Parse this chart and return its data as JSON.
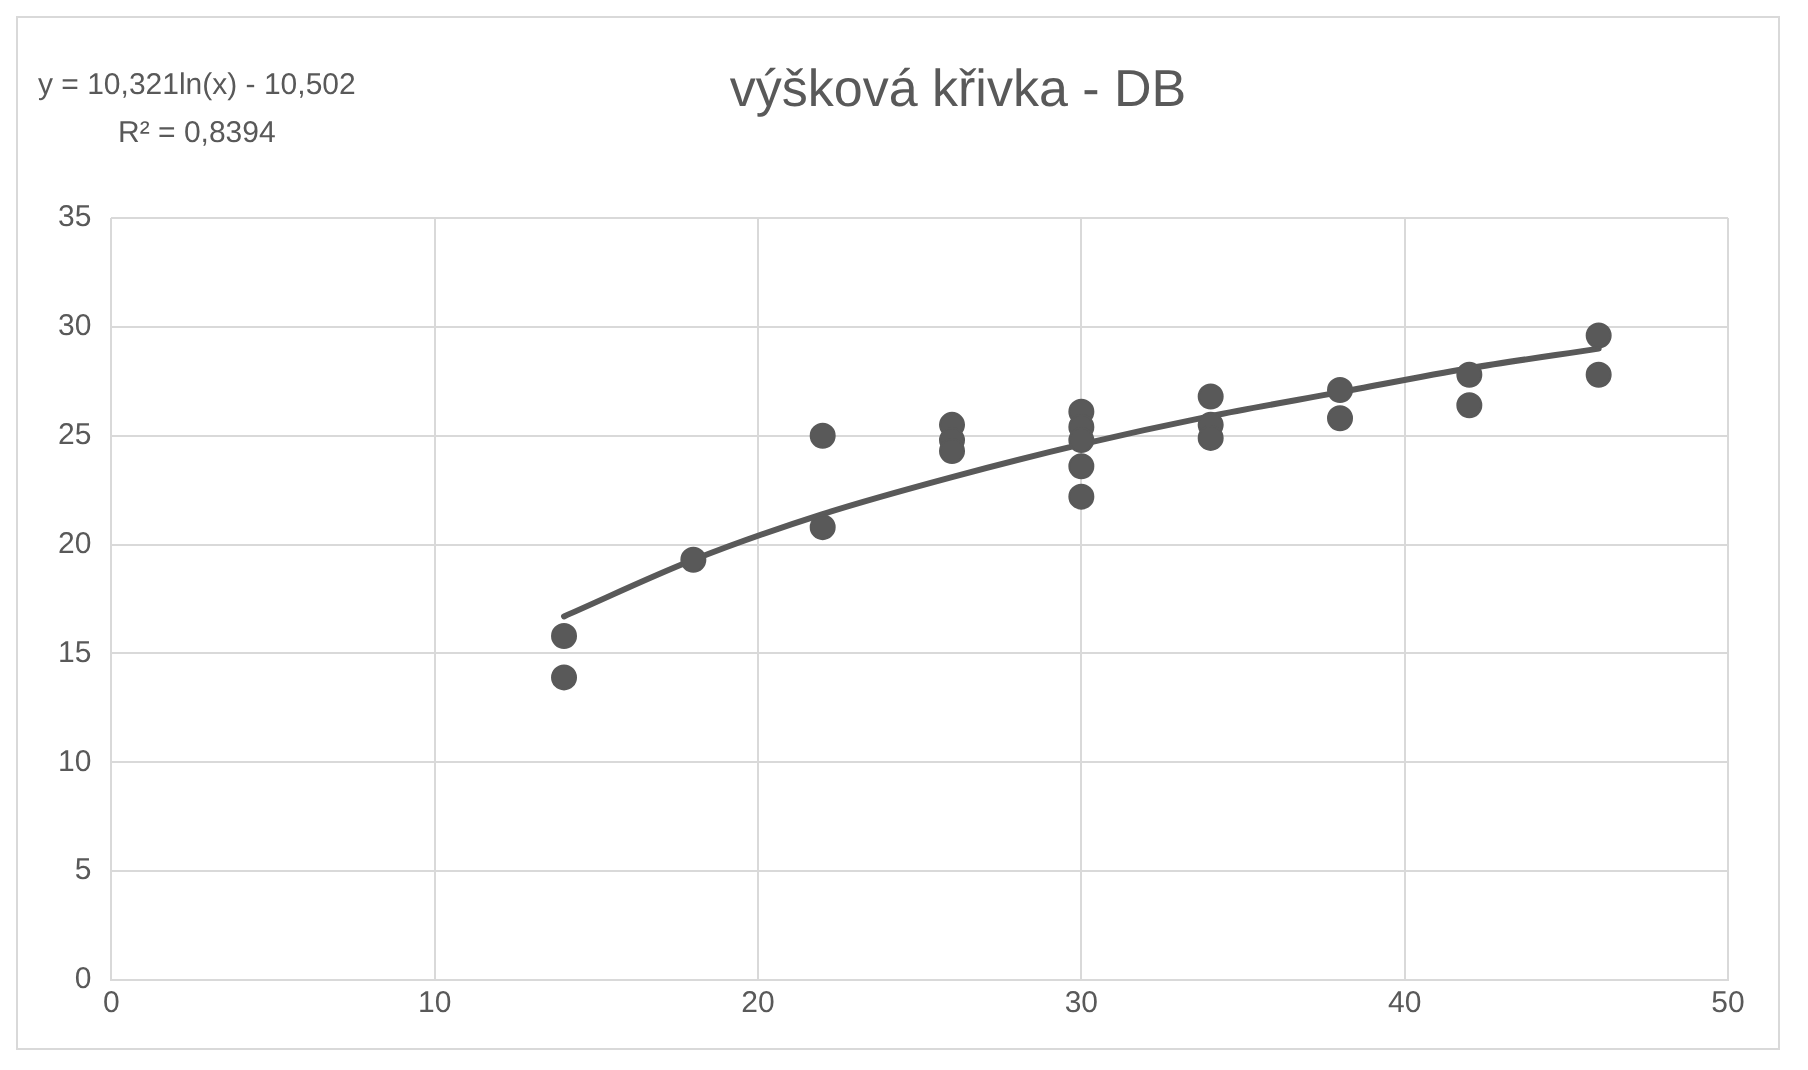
{
  "chart_data": {
    "type": "scatter",
    "title": "výšková křivka - DB",
    "annotations": [
      "y = 10,321ln(x) - 10,502",
      "R² = 0,8394"
    ],
    "series": [
      {
        "color": "#595959",
        "x": [
          14,
          14,
          18,
          22,
          22,
          26,
          26,
          26,
          30,
          30,
          30,
          30,
          30,
          34,
          34,
          34,
          38,
          38,
          42,
          42,
          46,
          46
        ],
        "values": [
          15.8,
          13.9,
          19.3,
          25.0,
          20.8,
          25.5,
          24.8,
          24.3,
          26.1,
          25.4,
          24.8,
          23.6,
          22.2,
          26.8,
          25.5,
          24.9,
          27.1,
          25.8,
          27.8,
          26.4,
          29.6,
          27.8
        ]
      },
      {
        "type": "line",
        "marker": "none",
        "color": "#595959",
        "x": [
          14,
          18,
          22,
          26,
          30,
          34,
          38,
          42,
          46
        ],
        "values": [
          16.7,
          19.3,
          21.4,
          23.1,
          24.6,
          25.9,
          27.0,
          28.1,
          29.0
        ]
      }
    ],
    "xlim": [
      0,
      50
    ],
    "xticks": [
      0,
      10,
      20,
      30,
      40,
      50
    ],
    "ylim": [
      0,
      35
    ],
    "yticks": [
      0,
      5,
      10,
      15,
      20,
      25,
      30,
      35
    ],
    "grid": true,
    "legend": false,
    "marker": "circle",
    "line_style": "solid"
  }
}
